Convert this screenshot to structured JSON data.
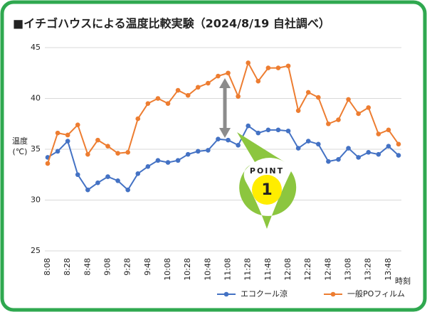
{
  "chart_data": {
    "type": "line",
    "title": "■イチゴハウスによる温度比較実験（2024/8/19 自社調べ）",
    "ylabel": [
      "温度",
      "(℃)"
    ],
    "xlabel": "時刻",
    "categories": [
      "8:08",
      null,
      "8:28",
      null,
      "8:48",
      null,
      "9:08",
      null,
      "9:28",
      null,
      "9:48",
      null,
      "10:08",
      null,
      "10:28",
      null,
      "10:48",
      null,
      "11:08",
      null,
      "11:28",
      null,
      "11:48",
      null,
      "12:08",
      null,
      "12:28",
      null,
      "12:48",
      null,
      "13:08",
      null,
      "13:28",
      null,
      "13:48",
      null
    ],
    "series": [
      {
        "name": "エコクール涼",
        "color": "#4472c4",
        "values": [
          34.2,
          34.8,
          35.8,
          32.5,
          31.0,
          31.7,
          32.3,
          31.9,
          31.0,
          32.6,
          33.3,
          33.9,
          33.7,
          33.9,
          34.5,
          34.8,
          34.9,
          36.0,
          35.9,
          35.4,
          37.3,
          36.6,
          36.9,
          36.9,
          36.8,
          35.1,
          35.8,
          35.5,
          33.8,
          34.0,
          35.1,
          34.2,
          34.7,
          34.5,
          35.3,
          34.4
        ]
      },
      {
        "name": "一般POフィルム",
        "color": "#ed7d31",
        "values": [
          33.6,
          36.6,
          36.4,
          37.4,
          34.5,
          35.9,
          35.3,
          34.6,
          34.7,
          38.0,
          39.5,
          40.0,
          39.5,
          40.8,
          40.3,
          41.1,
          41.5,
          42.2,
          42.5,
          40.2,
          43.5,
          41.7,
          43.0,
          43.0,
          43.2,
          38.8,
          40.6,
          40.1,
          37.5,
          37.9,
          39.9,
          38.5,
          39.1,
          36.5,
          36.9,
          35.5
        ]
      }
    ],
    "ylim": [
      25,
      45
    ],
    "yticks": [
      25,
      30,
      35,
      40,
      45
    ],
    "grid": true,
    "legend": "bottom",
    "annotations": [
      "POINT",
      "1"
    ]
  }
}
